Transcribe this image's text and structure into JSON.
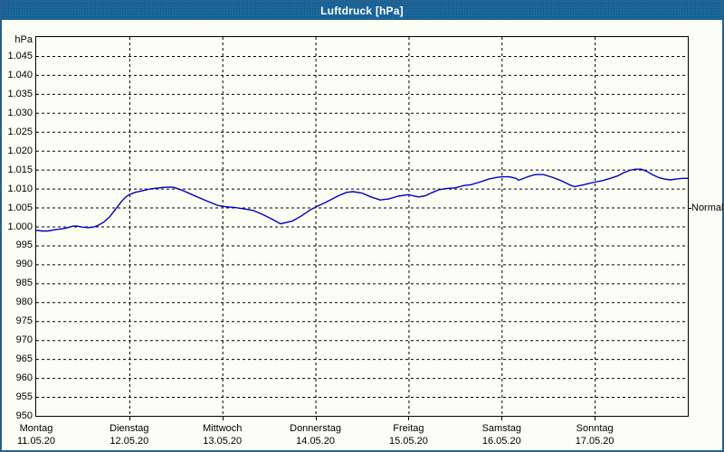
{
  "window": {
    "title": "Luftdruck [hPa]"
  },
  "colors": {
    "titlebar": "#1d6a9d",
    "window_border": "#26618f",
    "background": "#fcfdf5",
    "grid": "#000000",
    "line": "#0000c0",
    "text": "#000000",
    "title_text": "#ffffff"
  },
  "chart_data": {
    "type": "line",
    "title": "Luftdruck [hPa]",
    "y_unit": "hPa",
    "ylabel": "Luftdruck",
    "ylim": [
      950,
      1050
    ],
    "grid": "dashed",
    "legend_position": "none",
    "y_ticks": [
      {
        "value": 1045,
        "label": "1.045"
      },
      {
        "value": 1040,
        "label": "1.040"
      },
      {
        "value": 1035,
        "label": "1.035"
      },
      {
        "value": 1030,
        "label": "1.030"
      },
      {
        "value": 1025,
        "label": "1.025"
      },
      {
        "value": 1020,
        "label": "1.020"
      },
      {
        "value": 1015,
        "label": "1.015"
      },
      {
        "value": 1010,
        "label": "1.010"
      },
      {
        "value": 1005,
        "label": "1.005"
      },
      {
        "value": 1000,
        "label": "1.000"
      },
      {
        "value": 995,
        "label": "995"
      },
      {
        "value": 990,
        "label": "990"
      },
      {
        "value": 985,
        "label": "985"
      },
      {
        "value": 980,
        "label": "980"
      },
      {
        "value": 975,
        "label": "975"
      },
      {
        "value": 970,
        "label": "970"
      },
      {
        "value": 965,
        "label": "965"
      },
      {
        "value": 960,
        "label": "960"
      },
      {
        "value": 955,
        "label": "955"
      },
      {
        "value": 950,
        "label": "950"
      }
    ],
    "x_days": [
      {
        "label": "Montag",
        "date": "11.05.20"
      },
      {
        "label": "Dienstag",
        "date": "12.05.20"
      },
      {
        "label": "Mittwoch",
        "date": "13.05.20"
      },
      {
        "label": "Donnerstag",
        "date": "14.05.20"
      },
      {
        "label": "Freitag",
        "date": "15.05.20"
      },
      {
        "label": "Samstag",
        "date": "16.05.20"
      },
      {
        "label": "Sonntag",
        "date": "17.05.20"
      }
    ],
    "x_range_hours": [
      0,
      168
    ],
    "normal": {
      "label": "Normal",
      "value": 1005
    },
    "series": [
      {
        "name": "Luftdruck",
        "color": "#0000c0",
        "points": [
          [
            0,
            999.0
          ],
          [
            1.5,
            998.8
          ],
          [
            3,
            998.8
          ],
          [
            4.5,
            999.1
          ],
          [
            6,
            999.3
          ],
          [
            7.5,
            999.5
          ],
          [
            8.5,
            999.8
          ],
          [
            9.5,
            1000.1
          ],
          [
            10.5,
            1000.1
          ],
          [
            12,
            999.8
          ],
          [
            13.5,
            999.7
          ],
          [
            15,
            999.9
          ],
          [
            16,
            1000.3
          ],
          [
            17.5,
            1001.2
          ],
          [
            19,
            1002.6
          ],
          [
            20.5,
            1004.6
          ],
          [
            22,
            1006.6
          ],
          [
            23,
            1007.7
          ],
          [
            24,
            1008.4
          ],
          [
            25.5,
            1009.0
          ],
          [
            27.3,
            1009.4
          ],
          [
            29.4,
            1009.9
          ],
          [
            31,
            1010.1
          ],
          [
            32.7,
            1010.3
          ],
          [
            34.5,
            1010.4
          ],
          [
            35.5,
            1010.3
          ],
          [
            37.3,
            1009.7
          ],
          [
            40.4,
            1008.3
          ],
          [
            43.6,
            1006.9
          ],
          [
            46.7,
            1005.6
          ],
          [
            48,
            1005.3
          ],
          [
            51.3,
            1005.0
          ],
          [
            54.4,
            1004.5
          ],
          [
            56,
            1004.2
          ],
          [
            58.3,
            1003.2
          ],
          [
            60.7,
            1002.0
          ],
          [
            63,
            1000.7
          ],
          [
            66,
            1001.4
          ],
          [
            68.4,
            1002.8
          ],
          [
            70.7,
            1004.4
          ],
          [
            72,
            1005.1
          ],
          [
            74.7,
            1006.4
          ],
          [
            77.7,
            1008.0
          ],
          [
            80,
            1009.0
          ],
          [
            81.7,
            1009.2
          ],
          [
            84,
            1008.8
          ],
          [
            86.3,
            1007.8
          ],
          [
            88.7,
            1007.0
          ],
          [
            91,
            1007.3
          ],
          [
            93.3,
            1008.0
          ],
          [
            96,
            1008.4
          ],
          [
            97.5,
            1008.0
          ],
          [
            98.7,
            1007.8
          ],
          [
            100.3,
            1008.1
          ],
          [
            102.2,
            1009.0
          ],
          [
            103.8,
            1009.7
          ],
          [
            105.7,
            1010.0
          ],
          [
            108,
            1010.2
          ],
          [
            110.3,
            1010.8
          ],
          [
            112,
            1011.0
          ],
          [
            114.3,
            1011.7
          ],
          [
            116.7,
            1012.5
          ],
          [
            118.5,
            1012.9
          ],
          [
            120,
            1013.1
          ],
          [
            122,
            1013.1
          ],
          [
            123.7,
            1012.7
          ],
          [
            124.4,
            1012.2
          ],
          [
            126.7,
            1013.1
          ],
          [
            128.3,
            1013.6
          ],
          [
            129,
            1013.7
          ],
          [
            130.7,
            1013.7
          ],
          [
            133,
            1013.0
          ],
          [
            135.3,
            1012.1
          ],
          [
            137.7,
            1010.9
          ],
          [
            138.8,
            1010.5
          ],
          [
            140.7,
            1010.9
          ],
          [
            142.3,
            1011.3
          ],
          [
            144,
            1011.7
          ],
          [
            146,
            1012.1
          ],
          [
            148,
            1012.7
          ],
          [
            150,
            1013.4
          ],
          [
            151.5,
            1014.2
          ],
          [
            153,
            1014.8
          ],
          [
            154.5,
            1015.1
          ],
          [
            156,
            1015.1
          ],
          [
            157.5,
            1014.5
          ],
          [
            159,
            1013.6
          ],
          [
            160.5,
            1012.9
          ],
          [
            162,
            1012.5
          ],
          [
            163.5,
            1012.3
          ],
          [
            165,
            1012.5
          ],
          [
            166.5,
            1012.7
          ],
          [
            168,
            1012.7
          ]
        ]
      }
    ]
  }
}
